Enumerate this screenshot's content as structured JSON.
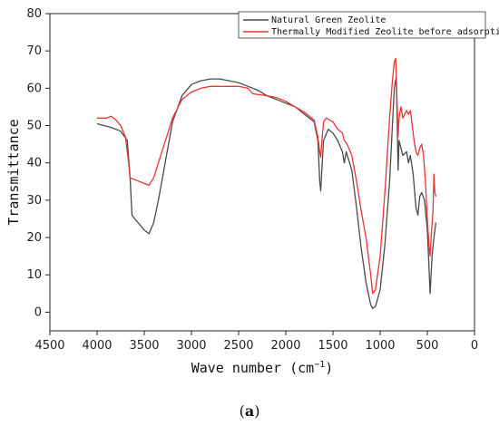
{
  "chart_data": {
    "type": "line",
    "xlabel": "Wave number (cm",
    "xlabel_sup": "−1",
    "xlabel_close": ")",
    "ylabel": "Transmittance",
    "xlim": [
      4500,
      0
    ],
    "ylim": [
      -5,
      80
    ],
    "x_ticks": [
      4500,
      4000,
      3500,
      3000,
      2500,
      2000,
      1500,
      1000,
      500,
      0
    ],
    "y_ticks": [
      0,
      10,
      20,
      30,
      40,
      50,
      60,
      70,
      80
    ],
    "grid": false,
    "legend_position": "top-right",
    "series": [
      {
        "name": "Natural Green Zeolite",
        "color": "#4a4a4a",
        "points": [
          [
            4000,
            50.5
          ],
          [
            3850,
            49.5
          ],
          [
            3750,
            48.5
          ],
          [
            3680,
            46
          ],
          [
            3650,
            36
          ],
          [
            3630,
            26
          ],
          [
            3600,
            25
          ],
          [
            3550,
            23.5
          ],
          [
            3500,
            22
          ],
          [
            3450,
            21
          ],
          [
            3400,
            24
          ],
          [
            3350,
            30
          ],
          [
            3300,
            37
          ],
          [
            3250,
            44
          ],
          [
            3200,
            51
          ],
          [
            3100,
            58
          ],
          [
            3000,
            61
          ],
          [
            2900,
            62
          ],
          [
            2800,
            62.5
          ],
          [
            2700,
            62.5
          ],
          [
            2600,
            62
          ],
          [
            2500,
            61.5
          ],
          [
            2400,
            60.5
          ],
          [
            2300,
            59.5
          ],
          [
            2200,
            58
          ],
          [
            2100,
            57
          ],
          [
            2000,
            56
          ],
          [
            1900,
            55
          ],
          [
            1800,
            53
          ],
          [
            1700,
            51
          ],
          [
            1660,
            46
          ],
          [
            1640,
            35
          ],
          [
            1630,
            32.5
          ],
          [
            1620,
            37
          ],
          [
            1600,
            46
          ],
          [
            1550,
            49
          ],
          [
            1500,
            48
          ],
          [
            1450,
            46
          ],
          [
            1400,
            43
          ],
          [
            1380,
            40
          ],
          [
            1360,
            43
          ],
          [
            1300,
            38
          ],
          [
            1250,
            28
          ],
          [
            1200,
            17
          ],
          [
            1150,
            8
          ],
          [
            1100,
            2
          ],
          [
            1080,
            1
          ],
          [
            1050,
            1.5
          ],
          [
            1000,
            6
          ],
          [
            950,
            18
          ],
          [
            900,
            35
          ],
          [
            870,
            50
          ],
          [
            850,
            60
          ],
          [
            830,
            63
          ],
          [
            820,
            52
          ],
          [
            810,
            38
          ],
          [
            800,
            46
          ],
          [
            780,
            44
          ],
          [
            760,
            42
          ],
          [
            720,
            43
          ],
          [
            700,
            40
          ],
          [
            680,
            42
          ],
          [
            650,
            37
          ],
          [
            620,
            28
          ],
          [
            600,
            26
          ],
          [
            580,
            31
          ],
          [
            560,
            32
          ],
          [
            530,
            30
          ],
          [
            500,
            22
          ],
          [
            470,
            5
          ],
          [
            450,
            15
          ],
          [
            430,
            20
          ],
          [
            410,
            24
          ]
        ]
      },
      {
        "name": "Thermally Modified Zeolite before adsorption",
        "color": "#ee3333",
        "points": [
          [
            4000,
            52
          ],
          [
            3900,
            52
          ],
          [
            3850,
            52.5
          ],
          [
            3800,
            51.5
          ],
          [
            3750,
            50
          ],
          [
            3700,
            47
          ],
          [
            3670,
            41
          ],
          [
            3650,
            36
          ],
          [
            3600,
            35.5
          ],
          [
            3550,
            35
          ],
          [
            3500,
            34.5
          ],
          [
            3450,
            34
          ],
          [
            3400,
            36
          ],
          [
            3350,
            40
          ],
          [
            3300,
            44
          ],
          [
            3250,
            48
          ],
          [
            3200,
            52
          ],
          [
            3100,
            57
          ],
          [
            3000,
            59
          ],
          [
            2900,
            60
          ],
          [
            2800,
            60.5
          ],
          [
            2700,
            60.5
          ],
          [
            2600,
            60.5
          ],
          [
            2500,
            60.5
          ],
          [
            2400,
            60
          ],
          [
            2350,
            58.5
          ],
          [
            2200,
            58
          ],
          [
            2100,
            57.5
          ],
          [
            2000,
            56.5
          ],
          [
            1900,
            55
          ],
          [
            1800,
            53.5
          ],
          [
            1700,
            51.5
          ],
          [
            1660,
            47
          ],
          [
            1640,
            43
          ],
          [
            1630,
            41.5
          ],
          [
            1620,
            45
          ],
          [
            1600,
            51
          ],
          [
            1570,
            52
          ],
          [
            1500,
            51
          ],
          [
            1450,
            49
          ],
          [
            1400,
            48
          ],
          [
            1380,
            46
          ],
          [
            1350,
            45
          ],
          [
            1300,
            42
          ],
          [
            1250,
            35
          ],
          [
            1200,
            27
          ],
          [
            1150,
            20
          ],
          [
            1100,
            10
          ],
          [
            1080,
            5
          ],
          [
            1050,
            6
          ],
          [
            1000,
            15
          ],
          [
            950,
            32
          ],
          [
            900,
            52
          ],
          [
            870,
            62
          ],
          [
            850,
            67
          ],
          [
            835,
            68
          ],
          [
            825,
            60
          ],
          [
            810,
            47
          ],
          [
            800,
            52
          ],
          [
            780,
            55
          ],
          [
            760,
            52
          ],
          [
            740,
            53
          ],
          [
            720,
            54
          ],
          [
            700,
            53
          ],
          [
            680,
            54
          ],
          [
            660,
            50
          ],
          [
            640,
            46
          ],
          [
            620,
            43
          ],
          [
            600,
            42
          ],
          [
            580,
            44
          ],
          [
            560,
            45
          ],
          [
            540,
            42
          ],
          [
            520,
            35
          ],
          [
            500,
            25
          ],
          [
            480,
            17
          ],
          [
            470,
            15
          ],
          [
            460,
            20
          ],
          [
            440,
            27
          ],
          [
            430,
            37
          ],
          [
            420,
            32
          ],
          [
            410,
            31
          ]
        ]
      }
    ]
  },
  "caption": {
    "open": "(",
    "letter": "a",
    "close": ")"
  }
}
